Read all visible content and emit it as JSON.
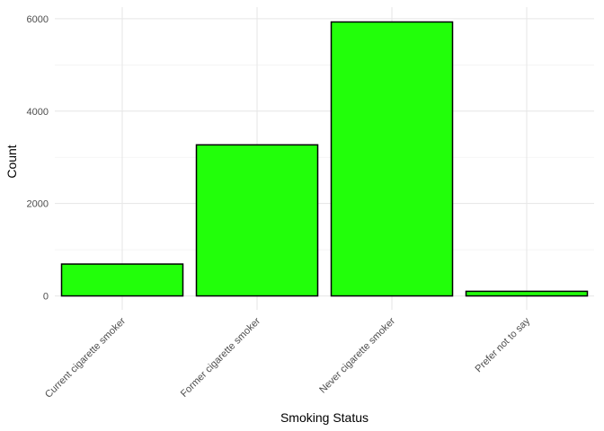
{
  "chart_data": {
    "type": "bar",
    "title": "",
    "xlabel": "Smoking Status",
    "ylabel": "Count",
    "categories": [
      "Current cigarette smoker",
      "Former cigarette smoker",
      "Never cigarette smoker",
      "Prefer not to say"
    ],
    "values": [
      690,
      3270,
      5930,
      100
    ],
    "ylim": [
      -300,
      6250
    ],
    "yticks": [
      0,
      2000,
      4000,
      6000
    ],
    "ytick_labels": [
      "0",
      "2000",
      "4000",
      "6000"
    ],
    "grid": true,
    "legend": "none",
    "bar_fill": "#22ff0a",
    "bar_outline": "#000000"
  }
}
